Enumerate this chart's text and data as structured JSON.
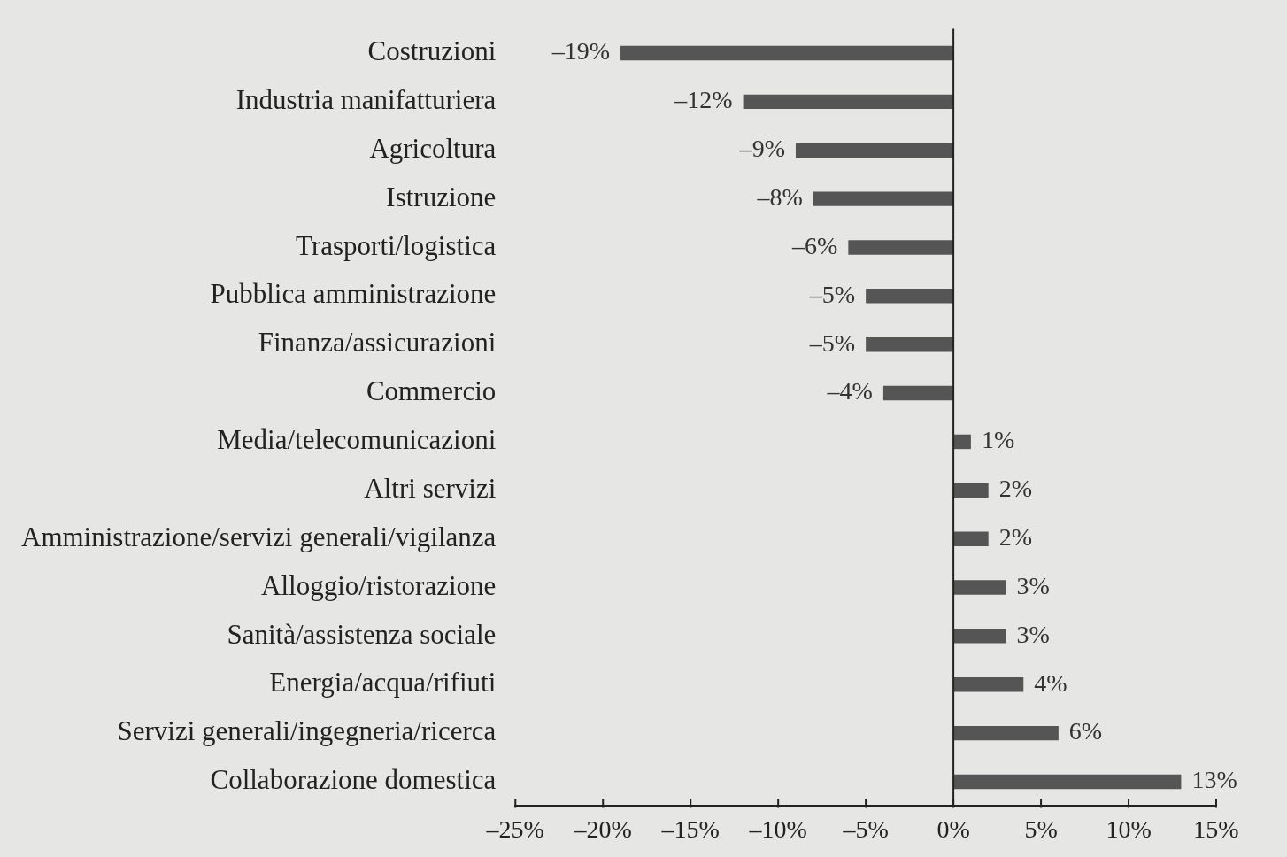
{
  "chart_data": {
    "type": "bar",
    "orientation": "horizontal",
    "categories": [
      "Costruzioni",
      "Industria manifatturiera",
      "Agricoltura",
      "Istruzione",
      "Trasporti/logistica",
      "Pubblica amministrazione",
      "Finanza/assicurazioni",
      "Commercio",
      "Media/telecomunicazioni",
      "Altri servizi",
      "Amministrazione/servizi generali/vigilanza",
      "Alloggio/ristorazione",
      "Sanità/assistenza sociale",
      "Energia/acqua/rifiuti",
      "Servizi generali/ingegneria/ricerca",
      "Collaborazione domestica"
    ],
    "values": [
      -19,
      -12,
      -9,
      -8,
      -6,
      -5,
      -5,
      -4,
      1,
      2,
      2,
      3,
      3,
      4,
      6,
      13
    ],
    "value_labels": [
      "–19%",
      "–12%",
      "–9%",
      "–8%",
      "–6%",
      "–5%",
      "–5%",
      "–4%",
      "1%",
      "2%",
      "2%",
      "3%",
      "3%",
      "4%",
      "6%",
      "13%"
    ],
    "color": "#555555",
    "xlim": [
      -25,
      15
    ],
    "xticks": [
      {
        "value": -25,
        "label": "–25%"
      },
      {
        "value": -20,
        "label": "–20%"
      },
      {
        "value": -15,
        "label": "–15%"
      },
      {
        "value": -10,
        "label": "–10%"
      },
      {
        "value": -5,
        "label": "–5%"
      },
      {
        "value": 0,
        "label": "0%"
      },
      {
        "value": 5,
        "label": "5%"
      },
      {
        "value": 10,
        "label": "10%"
      },
      {
        "value": 15,
        "label": "15%"
      }
    ],
    "ref_lines": [
      {
        "axis": "x",
        "value": 0,
        "color": "#222222"
      }
    ],
    "grid": false,
    "legend": false
  }
}
